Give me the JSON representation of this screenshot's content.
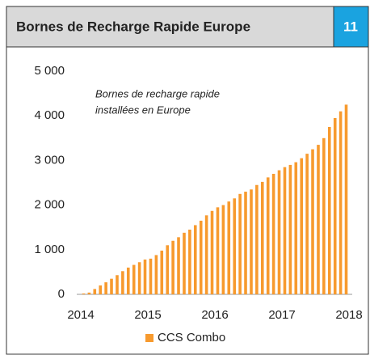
{
  "header": {
    "title": "Bornes de Recharge Rapide Europe",
    "badge": "11"
  },
  "chart_data": {
    "type": "bar",
    "annotation": [
      "Bornes de recharge rapide",
      "installées en Europe"
    ],
    "x": [
      2014.042,
      2014.125,
      2014.208,
      2014.292,
      2014.375,
      2014.458,
      2014.542,
      2014.625,
      2014.708,
      2014.792,
      2014.875,
      2014.958,
      2015.042,
      2015.125,
      2015.208,
      2015.292,
      2015.375,
      2015.458,
      2015.542,
      2015.625,
      2015.708,
      2015.792,
      2015.875,
      2015.958,
      2016.042,
      2016.125,
      2016.208,
      2016.292,
      2016.375,
      2016.458,
      2016.542,
      2016.625,
      2016.708,
      2016.792,
      2016.875,
      2016.958,
      2017.042,
      2017.125,
      2017.208,
      2017.292,
      2017.375,
      2017.458,
      2017.542,
      2017.625,
      2017.708,
      2017.792,
      2017.875,
      2017.958
    ],
    "series": [
      {
        "name": "CCS Combo",
        "color": "#f79a2e",
        "values": [
          20,
          40,
          120,
          200,
          270,
          350,
          430,
          520,
          600,
          660,
          720,
          780,
          800,
          880,
          980,
          1100,
          1200,
          1280,
          1380,
          1450,
          1550,
          1650,
          1770,
          1870,
          1950,
          2000,
          2080,
          2150,
          2250,
          2300,
          2350,
          2450,
          2520,
          2620,
          2700,
          2780,
          2850,
          2900,
          2960,
          3050,
          3150,
          3250,
          3350,
          3500,
          3750,
          3950,
          4100,
          4250
        ]
      }
    ],
    "xlim": [
      2014,
      2018
    ],
    "xticks": [
      2014,
      2015,
      2016,
      2017,
      2018
    ],
    "ylim": [
      0,
      5000
    ],
    "yticks": [
      0,
      {
        "value": 1000,
        "label": "1 000"
      },
      {
        "value": 2000,
        "label": "2 000"
      },
      {
        "value": 3000,
        "label": "3 000"
      },
      {
        "value": 4000,
        "label": "4 000"
      },
      {
        "value": 5000,
        "label": "5 000"
      }
    ],
    "grid": false,
    "legend": "bottom"
  }
}
